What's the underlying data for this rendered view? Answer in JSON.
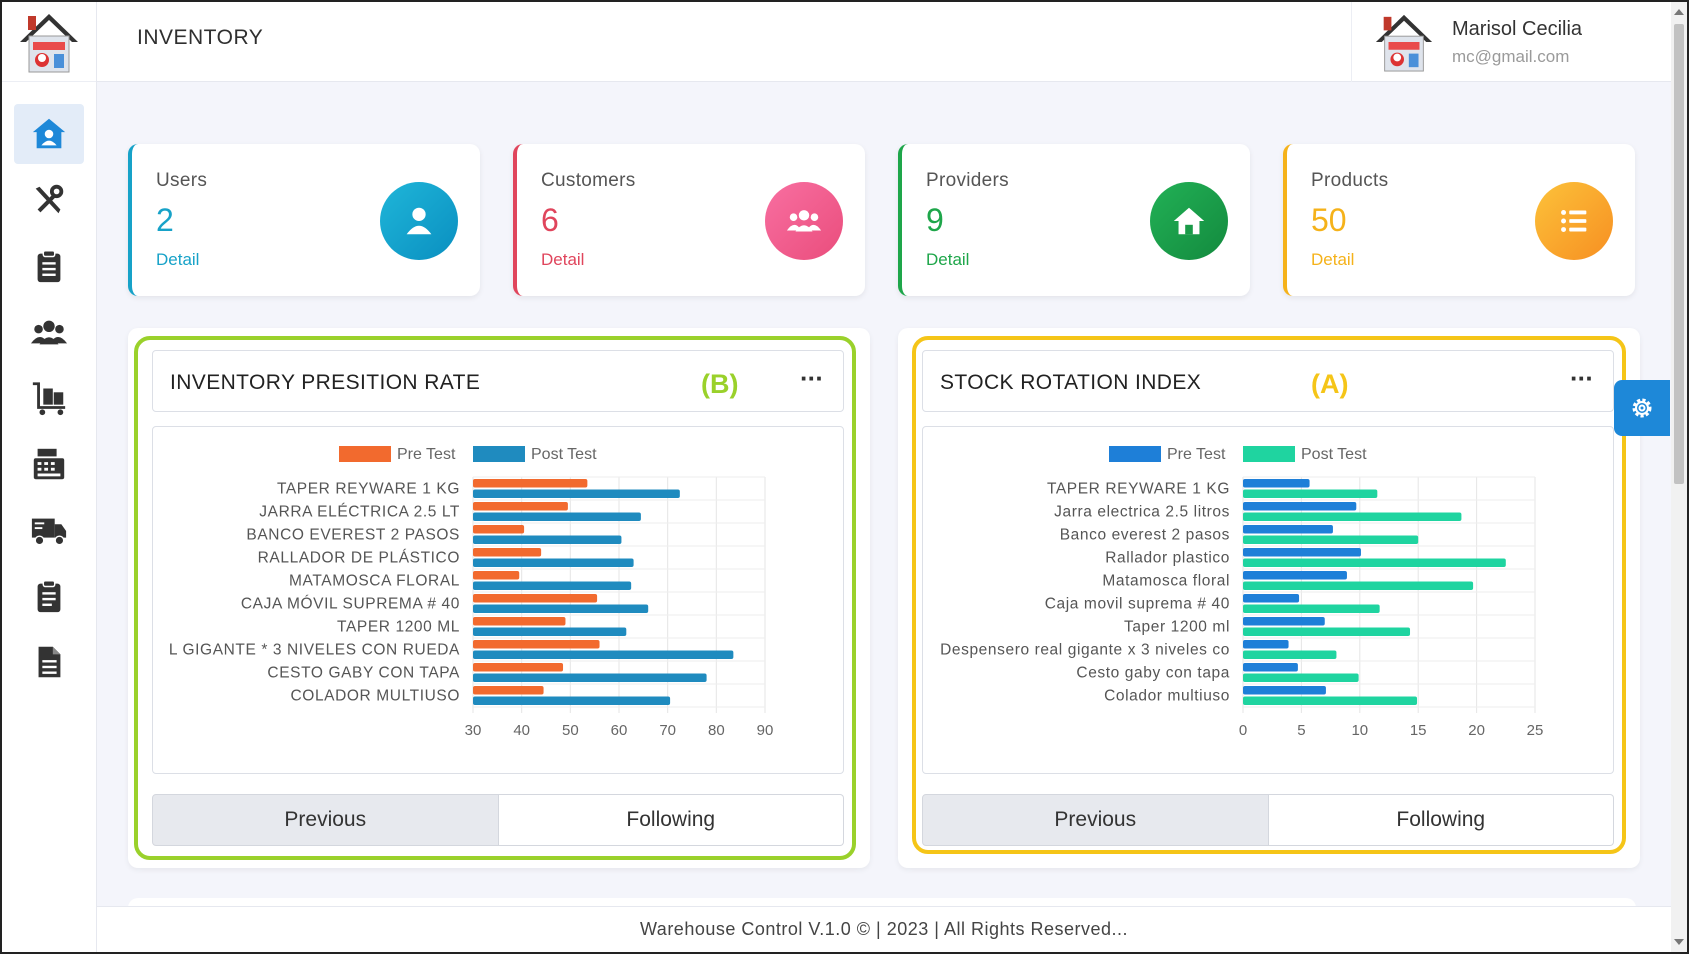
{
  "header": {
    "title": "INVENTORY"
  },
  "user": {
    "name": "Marisol Cecilia",
    "email": "mc@gmail.com"
  },
  "sidebar": {
    "items": [
      {
        "icon": "home-user-icon",
        "active": true
      },
      {
        "icon": "tools-icon"
      },
      {
        "icon": "clipboard-icon"
      },
      {
        "icon": "users-icon"
      },
      {
        "icon": "luggage-cart-icon"
      },
      {
        "icon": "cash-register-icon"
      },
      {
        "icon": "truck-icon"
      },
      {
        "icon": "clipboard-list-icon"
      },
      {
        "icon": "document-icon"
      }
    ]
  },
  "stats": [
    {
      "label": "Users",
      "value": "2",
      "detail": "Detail",
      "color": "#17a2c8",
      "icon": "user-icon"
    },
    {
      "label": "Customers",
      "value": "6",
      "detail": "Detail",
      "color": "#e0455c",
      "icon": "group-icon"
    },
    {
      "label": "Providers",
      "value": "9",
      "detail": "Detail",
      "color": "#1ea64a",
      "icon": "house-icon"
    },
    {
      "label": "Products",
      "value": "50",
      "detail": "Detail",
      "color": "#f5b21a",
      "icon": "list-icon"
    }
  ],
  "panels": [
    {
      "title": "INVENTORY PRESITION RATE",
      "tag": "(B)",
      "tag_color": "#9ad12b",
      "menu": "···",
      "prev_label": "Previous",
      "next_label": "Following"
    },
    {
      "title": "STOCK ROTATION INDEX",
      "tag": "(A)",
      "tag_color": "#f5c518",
      "menu": "···",
      "prev_label": "Previous",
      "next_label": "Following"
    }
  ],
  "chart_data": [
    {
      "type": "bar",
      "orientation": "horizontal",
      "categories": [
        "TAPER REYWARE 1 KG",
        "JARRA ELÉCTRICA 2.5 LT",
        "BANCO EVEREST 2 PASOS",
        "RALLADOR DE PLÁSTICO",
        "MATAMOSCA FLORAL",
        "CAJA MÓVIL SUPREMA # 40",
        "TAPER 1200 ML",
        "L GIGANTE * 3 NIVELES CON RUEDA",
        "CESTO GABY CON TAPA",
        "COLADOR MULTIUSO"
      ],
      "series": [
        {
          "name": "Pre Test",
          "color": "#f26a2e",
          "values": [
            53.5,
            49.5,
            40.5,
            44,
            39.5,
            55.5,
            49,
            56,
            48.5,
            44.5
          ]
        },
        {
          "name": "Post Test",
          "color": "#1f8bbf",
          "values": [
            72.5,
            64.5,
            60.5,
            63,
            62.5,
            66,
            61.5,
            83.5,
            78,
            70.5
          ]
        }
      ],
      "xlim": [
        30,
        90
      ],
      "xticks": [
        30,
        40,
        50,
        60,
        70,
        80,
        90
      ],
      "legend": "top",
      "grid": true
    },
    {
      "type": "bar",
      "orientation": "horizontal",
      "categories": [
        "TAPER REYWARE 1 KG",
        "Jarra electrica 2.5 litros",
        "Banco everest 2 pasos",
        "Rallador plastico",
        "Matamosca floral",
        "Caja movil suprema # 40",
        "Taper 1200 ml",
        "Despensero real gigante x 3 niveles co",
        "Cesto gaby con tapa",
        "Colador multiuso"
      ],
      "series": [
        {
          "name": "Pre Test",
          "color": "#1e7fd8",
          "values": [
            5.7,
            9.7,
            7.7,
            10.1,
            8.9,
            4.8,
            7,
            3.9,
            4.7,
            7.1
          ]
        },
        {
          "name": "Post Test",
          "color": "#1fd4a0",
          "values": [
            11.5,
            18.7,
            15,
            22.5,
            19.7,
            11.7,
            14.3,
            8,
            9.9,
            14.9
          ]
        }
      ],
      "xlim": [
        0,
        25
      ],
      "xticks": [
        0,
        5,
        10,
        15,
        20,
        25
      ],
      "legend": "top",
      "grid": true
    }
  ],
  "footer": {
    "text": "Warehouse Control V.1.0 © | 2023 | All Rights Reserved..."
  }
}
